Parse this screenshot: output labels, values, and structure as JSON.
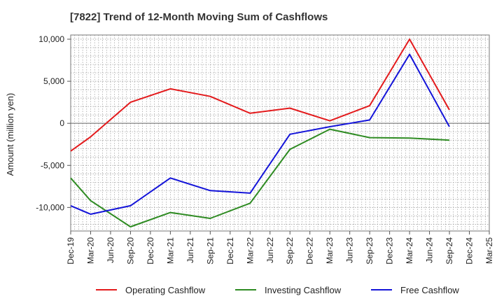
{
  "chart_data": {
    "type": "line",
    "title": "[7822]  Trend of 12-Month Moving Sum of Cashflows",
    "xlabel": "",
    "ylabel": "Amount (million yen)",
    "x": [
      "Dec-19",
      "Mar-20",
      "Jun-20",
      "Sep-20",
      "Dec-20",
      "Mar-21",
      "Jun-21",
      "Sep-21",
      "Dec-21",
      "Mar-22",
      "Jun-22",
      "Sep-22",
      "Dec-22",
      "Mar-23",
      "Jun-23",
      "Sep-23",
      "Dec-23",
      "Mar-24",
      "Jun-24",
      "Sep-24",
      "Dec-24",
      "Mar-25"
    ],
    "ylim": [
      -12800,
      10500
    ],
    "yticks": [
      10000,
      5000,
      0,
      -5000,
      -10000
    ],
    "ytick_labels": [
      "10,000",
      "5,000",
      "0",
      "-5,000",
      "-10,000"
    ],
    "grid": true,
    "legend_position": "bottom",
    "series": [
      {
        "name": "Operating Cashflow",
        "color": "#e31a1c",
        "points": [
          [
            "Dec-19",
            -3300
          ],
          [
            "Mar-20",
            -1600
          ],
          [
            "Sep-20",
            2500
          ],
          [
            "Mar-21",
            4100
          ],
          [
            "Sep-21",
            3200
          ],
          [
            "Mar-22",
            1200
          ],
          [
            "Sep-22",
            1800
          ],
          [
            "Mar-23",
            300
          ],
          [
            "Sep-23",
            2100
          ],
          [
            "Mar-24",
            10000
          ],
          [
            "Sep-24",
            1600
          ]
        ]
      },
      {
        "name": "Investing Cashflow",
        "color": "#2e8b22",
        "points": [
          [
            "Dec-19",
            -6500
          ],
          [
            "Mar-20",
            -9200
          ],
          [
            "Sep-20",
            -12300
          ],
          [
            "Mar-21",
            -10600
          ],
          [
            "Sep-21",
            -11300
          ],
          [
            "Mar-22",
            -9500
          ],
          [
            "Sep-22",
            -3100
          ],
          [
            "Mar-23",
            -700
          ],
          [
            "Sep-23",
            -1700
          ],
          [
            "Mar-24",
            -1750
          ],
          [
            "Sep-24",
            -2000
          ]
        ]
      },
      {
        "name": "Free Cashflow",
        "color": "#1414d9",
        "points": [
          [
            "Dec-19",
            -9800
          ],
          [
            "Mar-20",
            -10800
          ],
          [
            "Sep-20",
            -9800
          ],
          [
            "Mar-21",
            -6500
          ],
          [
            "Sep-21",
            -8000
          ],
          [
            "Mar-22",
            -8300
          ],
          [
            "Sep-22",
            -1300
          ],
          [
            "Mar-23",
            -400
          ],
          [
            "Sep-23",
            400
          ],
          [
            "Mar-24",
            8200
          ],
          [
            "Sep-24",
            -400
          ]
        ]
      }
    ]
  }
}
